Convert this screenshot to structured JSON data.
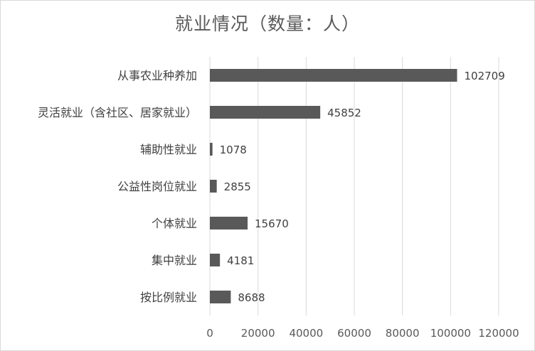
{
  "chart_data": {
    "type": "bar",
    "orientation": "horizontal",
    "title": "就业情况（数量：人）",
    "categories": [
      "从事农业种养加",
      "灵活就业（含社区、居家就业）",
      "辅助性就业",
      "公益性岗位就业",
      "个体就业",
      "集中就业",
      "按比例就业"
    ],
    "values": [
      102709,
      45852,
      1078,
      2855,
      15670,
      4181,
      8688
    ],
    "data_labels": [
      "102709",
      "45852",
      "1078",
      "2855",
      "15670",
      "4181",
      "8688"
    ],
    "xlim": [
      0,
      120000
    ],
    "x_ticks": [
      "0",
      "20000",
      "40000",
      "60000",
      "80000",
      "100000",
      "120000"
    ],
    "gridlines": true,
    "legend": "none",
    "bar_color": "#595959",
    "grid_color": "#d9d9d9"
  }
}
